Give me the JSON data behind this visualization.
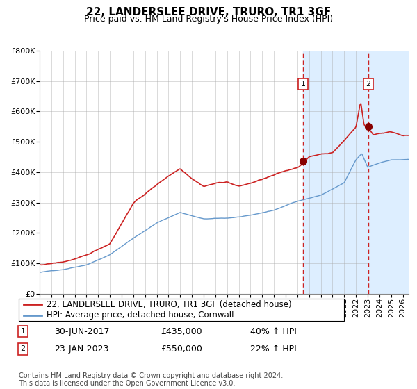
{
  "title": "22, LANDERSLEE DRIVE, TRURO, TR1 3GF",
  "subtitle": "Price paid vs. HM Land Registry's House Price Index (HPI)",
  "ylim": [
    0,
    800000
  ],
  "yticks": [
    0,
    100000,
    200000,
    300000,
    400000,
    500000,
    600000,
    700000,
    800000
  ],
  "ytick_labels": [
    "£0",
    "£100K",
    "£200K",
    "£300K",
    "£400K",
    "£500K",
    "£600K",
    "£700K",
    "£800K"
  ],
  "xlim_start": 1995.0,
  "xlim_end": 2026.5,
  "sale1_date": 2017.5,
  "sale1_price": 435000,
  "sale1_label": "1",
  "sale2_date": 2023.07,
  "sale2_price": 550000,
  "sale2_label": "2",
  "hpi_line_color": "#6699cc",
  "price_line_color": "#cc2222",
  "sale_dot_color": "#880000",
  "dashed_vline_color": "#cc2222",
  "shaded_region_color": "#ddeeff",
  "grid_color": "#aaaaaa",
  "background_color": "#ffffff",
  "legend_label_price": "22, LANDERSLEE DRIVE, TRURO, TR1 3GF (detached house)",
  "legend_label_hpi": "HPI: Average price, detached house, Cornwall",
  "annotation1_date": "30-JUN-2017",
  "annotation1_price": "£435,000",
  "annotation1_change": "40% ↑ HPI",
  "annotation2_date": "23-JAN-2023",
  "annotation2_price": "£550,000",
  "annotation2_change": "22% ↑ HPI",
  "footer": "Contains HM Land Registry data © Crown copyright and database right 2024.\nThis data is licensed under the Open Government Licence v3.0.",
  "title_fontsize": 11,
  "subtitle_fontsize": 9,
  "tick_fontsize": 8,
  "legend_fontsize": 8.5,
  "annotation_fontsize": 9,
  "footer_fontsize": 7
}
